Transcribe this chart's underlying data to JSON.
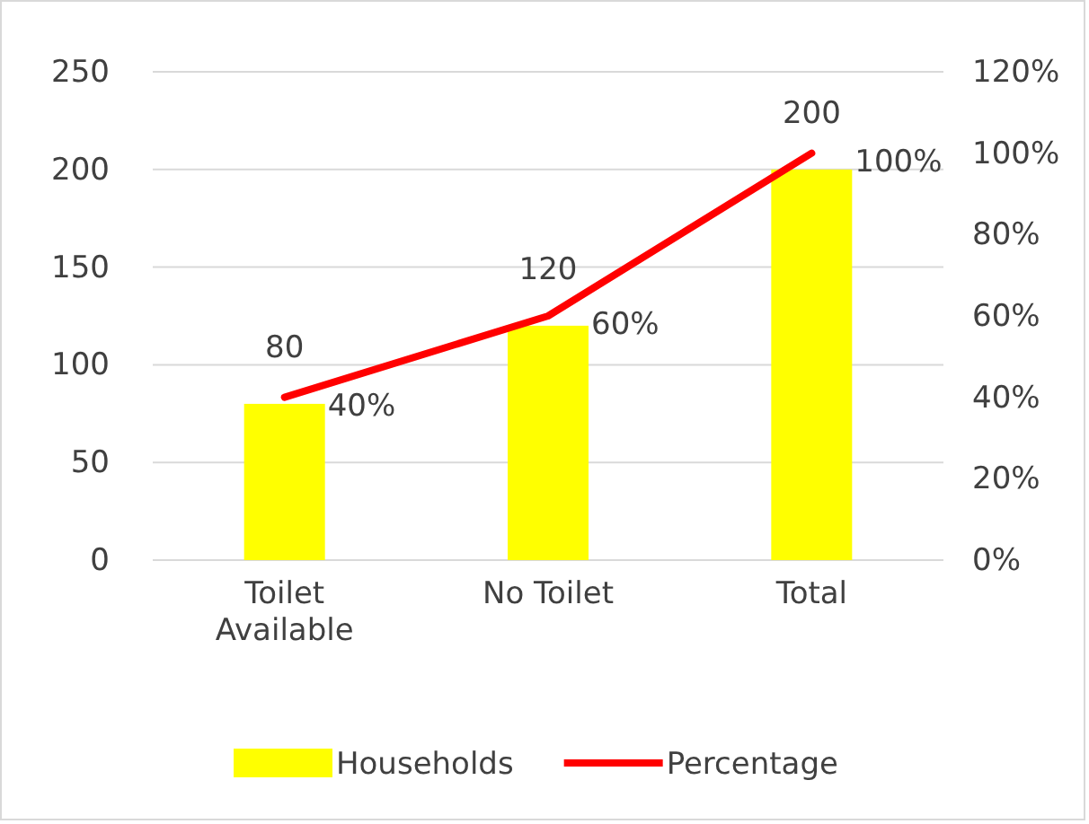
{
  "chart_data": {
    "type": "bar",
    "categories": [
      "Toilet Available",
      "No Toilet",
      "Total"
    ],
    "series": [
      {
        "name": "Households",
        "color": "#ffff00",
        "values": [
          80,
          120,
          200
        ],
        "value_labels": [
          "80",
          "120",
          "200"
        ]
      },
      {
        "name": "Percentage",
        "type": "line",
        "axis": "y2",
        "color": "#ff0000",
        "values": [
          40,
          60,
          100
        ],
        "value_labels": [
          "40%",
          "60%",
          "100%"
        ]
      }
    ],
    "ylim": [
      0,
      250
    ],
    "yticks": [
      0,
      50,
      100,
      150,
      200,
      250
    ],
    "y2lim": [
      0,
      120
    ],
    "y2ticks": [
      {
        "value": 0,
        "label": "0%"
      },
      {
        "value": 20,
        "label": "20%"
      },
      {
        "value": 40,
        "label": "40%"
      },
      {
        "value": 60,
        "label": "60%"
      },
      {
        "value": 80,
        "label": "80%"
      },
      {
        "value": 100,
        "label": "100%"
      },
      {
        "value": 120,
        "label": "120%"
      }
    ],
    "grid": "y",
    "legend": "bottom",
    "marker": "none",
    "line_style": "solid"
  }
}
